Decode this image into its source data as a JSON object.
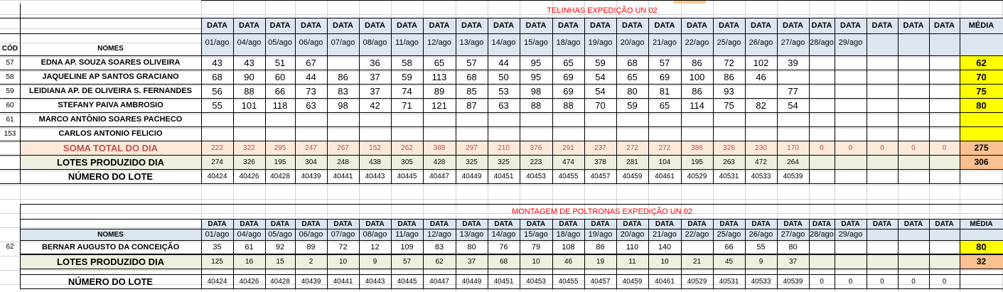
{
  "dates": [
    "01/ago",
    "04/ago",
    "05/ago",
    "06/ago",
    "07/ago",
    "08/ago",
    "11/ago",
    "12/ago",
    "13/ago",
    "14/ago",
    "15/ago",
    "18/ago",
    "19/ago",
    "20/ago",
    "21/ago",
    "22/ago",
    "25/ago",
    "26/ago",
    "27/ago",
    "28/ago",
    "29/ago",
    "",
    "",
    "",
    "",
    ""
  ],
  "headers": {
    "data": "DATA",
    "media": "MÉDIA",
    "cod": "CÓD",
    "nomes": "NOMES"
  },
  "section1": {
    "title": "TELINHAS EXPEDIÇÃO UN 02",
    "rows": [
      {
        "cod": "57",
        "name": "EDNA AP. SOUZA SOARES OLIVEIRA",
        "values": [
          "43",
          "43",
          "51",
          "67",
          "",
          "36",
          "58",
          "65",
          "57",
          "44",
          "95",
          "65",
          "59",
          "68",
          "57",
          "86",
          "72",
          "102",
          "39",
          "",
          "",
          "",
          "",
          "",
          "",
          ""
        ],
        "media": "62"
      },
      {
        "cod": "58",
        "name": "JAQUELINE AP SANTOS GRACIANO",
        "values": [
          "68",
          "90",
          "60",
          "44",
          "86",
          "37",
          "59",
          "113",
          "68",
          "50",
          "95",
          "69",
          "54",
          "65",
          "69",
          "100",
          "86",
          "46",
          "",
          "",
          "",
          "",
          "",
          "",
          "",
          ""
        ],
        "media": "70"
      },
      {
        "cod": "59",
        "name": "LEIDIANA AP. DE OLIVEIRA S. FERNANDES",
        "values": [
          "56",
          "88",
          "66",
          "73",
          "83",
          "37",
          "74",
          "89",
          "85",
          "53",
          "98",
          "69",
          "54",
          "80",
          "81",
          "86",
          "93",
          "",
          "77",
          "",
          "",
          "",
          "",
          "",
          "",
          ""
        ],
        "media": "75"
      },
      {
        "cod": "60",
        "name": "STEFANY PAIVA AMBROSIO",
        "values": [
          "55",
          "101",
          "118",
          "63",
          "98",
          "42",
          "71",
          "121",
          "87",
          "63",
          "88",
          "88",
          "70",
          "59",
          "65",
          "114",
          "75",
          "82",
          "54",
          "",
          "",
          "",
          "",
          "",
          "",
          ""
        ],
        "media": "80"
      },
      {
        "cod": "61",
        "name": "MARCO ANTÔNIO SOARES PACHECO",
        "values": [
          "",
          "",
          "",
          "",
          "",
          "",
          "",
          "",
          "",
          "",
          "",
          "",
          "",
          "",
          "",
          "",
          "",
          "",
          "",
          "",
          "",
          "",
          "",
          "",
          "",
          ""
        ],
        "media": ""
      },
      {
        "cod": "153",
        "name": "CARLOS ANTONIO FELICIO",
        "values": [
          "",
          "",
          "",
          "",
          "",
          "",
          "",
          "",
          "",
          "",
          "",
          "",
          "",
          "",
          "",
          "",
          "",
          "",
          "",
          "",
          "",
          "",
          "",
          "",
          "",
          ""
        ],
        "media": ""
      }
    ],
    "soma": {
      "label": "SOMA TOTAL DO DIA",
      "values": [
        "222",
        "322",
        "295",
        "247",
        "267",
        "152",
        "262",
        "388",
        "297",
        "210",
        "376",
        "291",
        "237",
        "272",
        "272",
        "386",
        "326",
        "230",
        "170",
        "0",
        "0",
        "0",
        "0",
        "0",
        "",
        ""
      ],
      "media": "275"
    },
    "lotes": {
      "label": "LOTES PRODUZIDO DIA",
      "values": [
        "274",
        "326",
        "195",
        "304",
        "248",
        "438",
        "305",
        "428",
        "325",
        "325",
        "223",
        "474",
        "378",
        "281",
        "104",
        "195",
        "263",
        "472",
        "264",
        "",
        "",
        "",
        "",
        "",
        "",
        ""
      ],
      "media": "306"
    },
    "numero": {
      "label": "NÚMERO DO LOTE",
      "values": [
        "40424",
        "40426",
        "40428",
        "40439",
        "40441",
        "40443",
        "40445",
        "40447",
        "40449",
        "40451",
        "40453",
        "40455",
        "40457",
        "40459",
        "40461",
        "40529",
        "40531",
        "40533",
        "40539",
        "",
        "",
        "",
        "",
        "",
        "",
        ""
      ]
    }
  },
  "section2": {
    "title": "MONTAGEM DE POLTRONAS EXPEDIÇÃO UN 02",
    "rows": [
      {
        "cod": "62",
        "name": "BERNAR AUGUSTO DA CONCEIÇÃO",
        "values": [
          "35",
          "61",
          "92",
          "89",
          "72",
          "12",
          "109",
          "83",
          "80",
          "76",
          "79",
          "108",
          "86",
          "110",
          "140",
          "",
          "66",
          "55",
          "80",
          "",
          "",
          "",
          "",
          "",
          "",
          ""
        ],
        "media": "80"
      }
    ],
    "lotes": {
      "label": "LOTES PRODUZIDO DIA",
      "values": [
        "125",
        "16",
        "15",
        "2",
        "10",
        "9",
        "57",
        "62",
        "37",
        "68",
        "10",
        "46",
        "19",
        "11",
        "10",
        "21",
        "45",
        "9",
        "37",
        "",
        "",
        "",
        "",
        "",
        "",
        ""
      ],
      "media": "32"
    },
    "numero": {
      "label": "NÚMERO DO LOTE",
      "values": [
        "40424",
        "40426",
        "40428",
        "40439",
        "40441",
        "40443",
        "40445",
        "40447",
        "40449",
        "40451",
        "40453",
        "40455",
        "40457",
        "40459",
        "40461",
        "40529",
        "40531",
        "40533",
        "40539",
        "0",
        "0",
        "0",
        "0",
        "0",
        "",
        ""
      ]
    }
  }
}
